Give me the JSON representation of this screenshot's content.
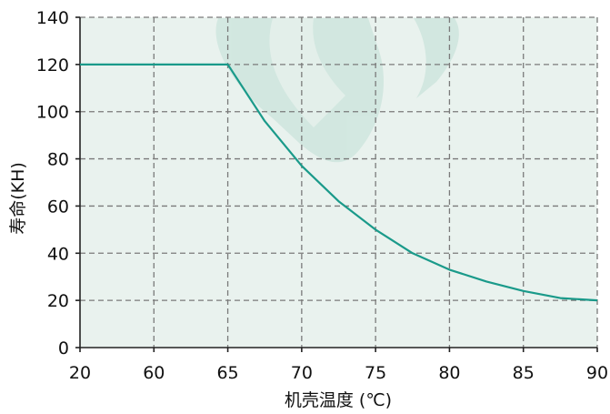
{
  "chart_data": {
    "type": "line",
    "xlabel": "机壳温度 (℃)",
    "ylabel": "寿命(KH)",
    "x_ticks": [
      "20",
      "60",
      "65",
      "70",
      "75",
      "80",
      "85",
      "90"
    ],
    "y_ticks": [
      0,
      20,
      40,
      60,
      80,
      100,
      120,
      140
    ],
    "ylim": [
      0,
      140
    ],
    "grid": true,
    "colors": {
      "line": "#1a9a8a",
      "plot_bg": "#e9f2ee",
      "watermark": "#cfe6de"
    },
    "series": [
      {
        "x": [
          20,
          60,
          65,
          67.5,
          70,
          72.5,
          75,
          77.5,
          80,
          82.5,
          85,
          87.5,
          90
        ],
        "y": [
          120,
          120,
          120,
          96,
          77,
          62,
          50,
          40,
          33,
          28,
          24,
          21,
          20
        ]
      }
    ]
  }
}
